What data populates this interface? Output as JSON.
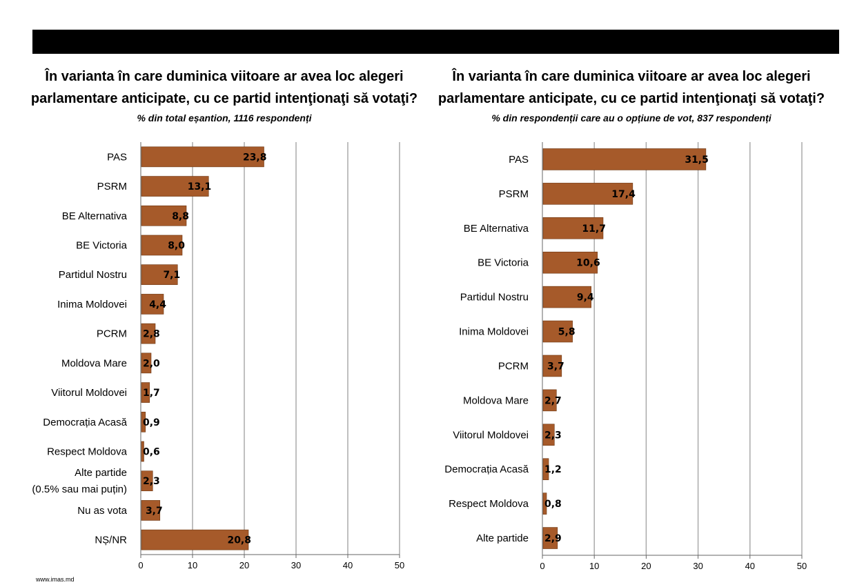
{
  "footer": "www.imas.md",
  "colors": {
    "bar": "#a65a2a",
    "bar_stroke": "#6b3510",
    "grid": "#aaaaaa"
  },
  "chart_data": [
    {
      "type": "bar",
      "orientation": "horizontal",
      "title": "În varianta în care duminica viitoare ar avea loc alegeri parlamentare anticipate, cu ce partid intenţionaţi să votaţi?",
      "subtitle": "% din total eșantion, 1116 respondenți",
      "categories": [
        "PAS",
        "PSRM",
        "BE Alternativa",
        "BE Victoria",
        "Partidul Nostru",
        "Inima Moldovei",
        "PCRM",
        "Moldova Mare",
        "Viitorul Moldovei",
        "Democrația Acasă",
        "Respect Moldova",
        "Alte partide\n(0.5% sau mai puțin)",
        "Nu as vota",
        "NȘ/NR"
      ],
      "values": [
        23.8,
        13.1,
        8.8,
        8.0,
        7.1,
        4.4,
        2.8,
        2.0,
        1.7,
        0.9,
        0.6,
        2.3,
        3.7,
        20.8
      ],
      "labels": [
        "23,8",
        "13,1",
        "8,8",
        "8,0",
        "7,1",
        "4,4",
        "2,8",
        "2,0",
        "1,7",
        "0,9",
        "0,6",
        "2,3",
        "3,7",
        "20,8"
      ],
      "xlim": [
        0,
        50
      ],
      "xticks": [
        0,
        10,
        20,
        30,
        40,
        50
      ],
      "grid": true
    },
    {
      "type": "bar",
      "orientation": "horizontal",
      "title": "În varianta în care duminica viitoare ar avea loc alegeri parlamentare anticipate, cu ce partid intenţionaţi să votaţi?",
      "subtitle": "% din respondenții care au o opțiune de vot, 837 respondenți",
      "categories": [
        "PAS",
        "PSRM",
        "BE Alternativa",
        "BE Victoria",
        "Partidul Nostru",
        "Inima Moldovei",
        "PCRM",
        "Moldova Mare",
        "Viitorul Moldovei",
        "Democrația Acasă",
        "Respect Moldova",
        "Alte partide"
      ],
      "values": [
        31.5,
        17.4,
        11.7,
        10.6,
        9.4,
        5.8,
        3.7,
        2.7,
        2.3,
        1.2,
        0.8,
        2.9
      ],
      "labels": [
        "31,5",
        "17,4",
        "11,7",
        "10,6",
        "9,4",
        "5,8",
        "3,7",
        "2,7",
        "2,3",
        "1,2",
        "0,8",
        "2,9"
      ],
      "xlim": [
        0,
        50
      ],
      "xticks": [
        0,
        10,
        20,
        30,
        40,
        50
      ],
      "grid": true
    }
  ]
}
